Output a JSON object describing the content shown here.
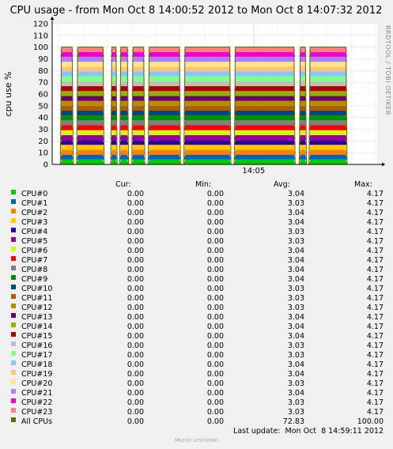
{
  "title": "CPU usage - from Mon Oct  8 14:00:52 2012 to Mon Oct  8 14:07:32 2012",
  "side_text": "RRDTOOL / TOBI OETIKER",
  "watermark": "Munin unknown",
  "table": {
    "headers": [
      "Cur:",
      "Min:",
      "Avg:",
      "Max:"
    ],
    "rows": [
      {
        "label": "CPU#0",
        "color": "#00cc00",
        "cur": "0.00",
        "min": "0.00",
        "avg": "3.04",
        "max": "4.17"
      },
      {
        "label": "CPU#1",
        "color": "#0066b3",
        "cur": "0.00",
        "min": "0.00",
        "avg": "3.03",
        "max": "4.17"
      },
      {
        "label": "CPU#2",
        "color": "#ff8000",
        "cur": "0.00",
        "min": "0.00",
        "avg": "3.04",
        "max": "4.17"
      },
      {
        "label": "CPU#3",
        "color": "#ffcc00",
        "cur": "0.00",
        "min": "0.00",
        "avg": "3.04",
        "max": "4.17"
      },
      {
        "label": "CPU#4",
        "color": "#330099",
        "cur": "0.00",
        "min": "0.00",
        "avg": "3.03",
        "max": "4.17"
      },
      {
        "label": "CPU#5",
        "color": "#990099",
        "cur": "0.00",
        "min": "0.00",
        "avg": "3.03",
        "max": "4.17"
      },
      {
        "label": "CPU#6",
        "color": "#ccff00",
        "cur": "0.00",
        "min": "0.00",
        "avg": "3.04",
        "max": "4.17"
      },
      {
        "label": "CPU#7",
        "color": "#ff0000",
        "cur": "0.00",
        "min": "0.00",
        "avg": "3.04",
        "max": "4.17"
      },
      {
        "label": "CPU#8",
        "color": "#808080",
        "cur": "0.00",
        "min": "0.00",
        "avg": "3.04",
        "max": "4.17"
      },
      {
        "label": "CPU#9",
        "color": "#008f00",
        "cur": "0.00",
        "min": "0.00",
        "avg": "3.04",
        "max": "4.17"
      },
      {
        "label": "CPU#10",
        "color": "#00487d",
        "cur": "0.00",
        "min": "0.00",
        "avg": "3.03",
        "max": "4.17"
      },
      {
        "label": "CPU#11",
        "color": "#b35a00",
        "cur": "0.00",
        "min": "0.00",
        "avg": "3.03",
        "max": "4.17"
      },
      {
        "label": "CPU#12",
        "color": "#b38f00",
        "cur": "0.00",
        "min": "0.00",
        "avg": "3.03",
        "max": "4.17"
      },
      {
        "label": "CPU#13",
        "color": "#6b006b",
        "cur": "0.00",
        "min": "0.00",
        "avg": "3.04",
        "max": "4.17"
      },
      {
        "label": "CPU#14",
        "color": "#8fb300",
        "cur": "0.00",
        "min": "0.00",
        "avg": "3.04",
        "max": "4.17"
      },
      {
        "label": "CPU#15",
        "color": "#b30000",
        "cur": "0.00",
        "min": "0.00",
        "avg": "3.04",
        "max": "4.17"
      },
      {
        "label": "CPU#16",
        "color": "#bebebe",
        "cur": "0.00",
        "min": "0.00",
        "avg": "3.03",
        "max": "4.17"
      },
      {
        "label": "CPU#17",
        "color": "#80ff80",
        "cur": "0.00",
        "min": "0.00",
        "avg": "3.03",
        "max": "4.17"
      },
      {
        "label": "CPU#18",
        "color": "#80c9ff",
        "cur": "0.00",
        "min": "0.00",
        "avg": "3.04",
        "max": "4.17"
      },
      {
        "label": "CPU#19",
        "color": "#ffc080",
        "cur": "0.00",
        "min": "0.00",
        "avg": "3.04",
        "max": "4.17"
      },
      {
        "label": "CPU#20",
        "color": "#ffe680",
        "cur": "0.00",
        "min": "0.00",
        "avg": "3.03",
        "max": "4.17"
      },
      {
        "label": "CPU#21",
        "color": "#aa80ff",
        "cur": "0.00",
        "min": "0.00",
        "avg": "3.04",
        "max": "4.17"
      },
      {
        "label": "CPU#22",
        "color": "#ee00cc",
        "cur": "0.00",
        "min": "0.00",
        "avg": "3.03",
        "max": "4.17"
      },
      {
        "label": "CPU#23",
        "color": "#ff8080",
        "cur": "0.00",
        "min": "0.00",
        "avg": "3.03",
        "max": "4.17"
      },
      {
        "label": "All CPUs",
        "color": "#666600",
        "cur": "0.00",
        "min": "0.00",
        "avg": "72.83",
        "max": "100.00"
      }
    ]
  },
  "last_update": "Last update:  Mon Oct  8 14:59:11 2012",
  "chart_data": {
    "type": "area",
    "title": "CPU usage - from Mon Oct  8 14:00:52 2012 to Mon Oct  8 14:07:32 2012",
    "ylabel": "cpu use %",
    "xlabel": "",
    "ylim": [
      0,
      120
    ],
    "yticks": [
      0,
      10,
      20,
      30,
      40,
      50,
      60,
      70,
      80,
      90,
      100,
      110,
      120
    ],
    "xlim": [
      "14:00:52",
      "14:07:32"
    ],
    "xticks": [
      {
        "t": "14:05:00",
        "label": "14:05"
      }
    ],
    "grid": true,
    "stacked": true,
    "series_count": 24,
    "per_series_value": 4.17,
    "segments": [
      {
        "start": "14:01:02",
        "end": "14:01:18",
        "value": 4.17
      },
      {
        "start": "14:01:22",
        "end": "14:01:56",
        "value": 4.17
      },
      {
        "start": "14:02:04",
        "end": "14:02:12",
        "value": 4.17
      },
      {
        "start": "14:02:15",
        "end": "14:02:26",
        "value": 4.17
      },
      {
        "start": "14:02:30",
        "end": "14:02:46",
        "value": 4.17
      },
      {
        "start": "14:02:50",
        "end": "14:03:30",
        "value": 4.17
      },
      {
        "start": "14:03:34",
        "end": "14:04:32",
        "value": 4.17
      },
      {
        "start": "14:04:36",
        "end": "14:05:51",
        "value": 4.17
      },
      {
        "start": "14:05:56",
        "end": "14:06:05",
        "value": 4.17
      },
      {
        "start": "14:06:08",
        "end": "14:06:55",
        "value": 4.17
      }
    ]
  }
}
